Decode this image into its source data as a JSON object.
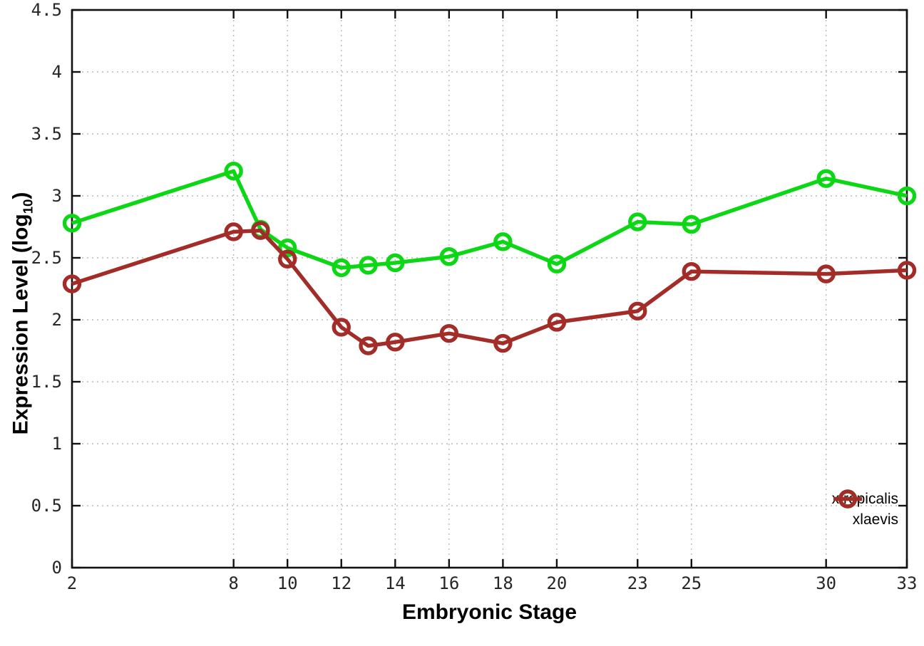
{
  "page": {
    "background": "#ffffff"
  },
  "chart_data": {
    "type": "line",
    "title": "",
    "xlabel": "Embryonic Stage",
    "ylabel": "Expression Level (log10)",
    "ylabel_parts": {
      "main": "Expression Level (log",
      "sub": "10",
      "close": ")"
    },
    "xlim": [
      2,
      33
    ],
    "ylim": [
      0,
      4.5
    ],
    "xticks": [
      2,
      8,
      10,
      12,
      14,
      16,
      18,
      20,
      23,
      25,
      30,
      33
    ],
    "yticks": [
      0,
      0.5,
      1,
      1.5,
      2,
      2.5,
      3,
      3.5,
      4,
      4.5
    ],
    "ytick_labels": [
      "0",
      "0.5",
      "1",
      "1.5",
      "2",
      "2.5",
      "3",
      "3.5",
      "4",
      "4.5"
    ],
    "grid": true,
    "grid_style": "dotted",
    "legend_position": "inside bottom-right",
    "x": [
      2,
      8,
      9,
      10,
      12,
      13,
      14,
      16,
      18,
      20,
      23,
      25,
      30,
      33
    ],
    "series": [
      {
        "name": "xtropicalis",
        "color": "#0cd715",
        "marker": "open-circle",
        "values": [
          2.78,
          3.2,
          2.73,
          2.58,
          2.42,
          2.44,
          2.46,
          2.51,
          2.63,
          2.45,
          2.79,
          2.77,
          3.14,
          3.0
        ]
      },
      {
        "name": "xlaevis",
        "color": "#a32c28",
        "marker": "open-circle",
        "values": [
          2.29,
          2.71,
          2.72,
          2.49,
          1.94,
          1.79,
          1.82,
          1.89,
          1.81,
          1.98,
          2.07,
          2.39,
          2.37,
          2.4
        ]
      }
    ],
    "axis_color": "#111111",
    "grid_color": "#b9b9b9",
    "tick_label_color": "#262626",
    "text_color": "#000000"
  }
}
